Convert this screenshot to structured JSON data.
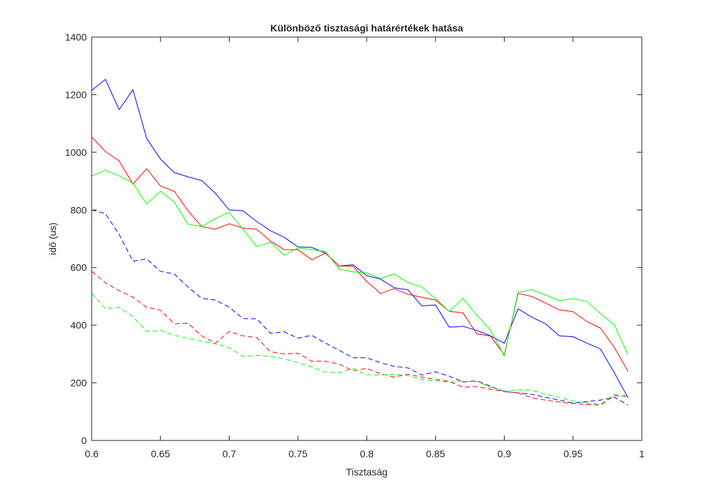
{
  "chart_data": {
    "type": "line",
    "title": "Különböző tisztasági határértékek hatása",
    "xlabel": "Tisztaság",
    "ylabel": "idő (us)",
    "xlim": [
      0.6,
      1.0
    ],
    "ylim": [
      0,
      1400
    ],
    "xticks": [
      0.6,
      0.65,
      0.7,
      0.75,
      0.8,
      0.85,
      0.9,
      0.95,
      1.0
    ],
    "xtick_labels": [
      "0.6",
      "0.65",
      "0.7",
      "0.75",
      "0.8",
      "0.85",
      "0.9",
      "0.95",
      "1"
    ],
    "yticks": [
      0,
      200,
      400,
      600,
      800,
      1000,
      1200,
      1400
    ],
    "ytick_labels": [
      "0",
      "200",
      "400",
      "600",
      "800",
      "1000",
      "1200",
      "1400"
    ],
    "grid": false,
    "legend": "none",
    "x": [
      0.6,
      0.61,
      0.62,
      0.63,
      0.64,
      0.65,
      0.66,
      0.67,
      0.68,
      0.69,
      0.7,
      0.71,
      0.72,
      0.73,
      0.74,
      0.75,
      0.76,
      0.77,
      0.78,
      0.79,
      0.8,
      0.81,
      0.82,
      0.83,
      0.84,
      0.85,
      0.86,
      0.87,
      0.88,
      0.89,
      0.9,
      0.91,
      0.92,
      0.93,
      0.94,
      0.95,
      0.96,
      0.97,
      0.98,
      0.99
    ],
    "series": [
      {
        "color": "#0000ff",
        "style": "solid",
        "values": [
          1215,
          1253,
          1148,
          1217,
          1048,
          977,
          930,
          915,
          902,
          858,
          800,
          797,
          760,
          728,
          705,
          672,
          670,
          650,
          605,
          610,
          572,
          560,
          530,
          523,
          467,
          470,
          393,
          396,
          382,
          363,
          337,
          457,
          428,
          405,
          363,
          360,
          338,
          317,
          235,
          148
        ]
      },
      {
        "color": "#ff0000",
        "style": "solid",
        "values": [
          1053,
          1003,
          970,
          890,
          943,
          883,
          865,
          798,
          742,
          733,
          752,
          737,
          733,
          692,
          662,
          662,
          627,
          650,
          605,
          605,
          552,
          510,
          527,
          507,
          497,
          487,
          448,
          443,
          370,
          362,
          297,
          510,
          500,
          477,
          453,
          447,
          413,
          390,
          323,
          240
        ]
      },
      {
        "color": "#00ff00",
        "style": "solid",
        "values": [
          918,
          938,
          918,
          893,
          820,
          865,
          828,
          750,
          743,
          770,
          792,
          733,
          673,
          688,
          643,
          668,
          662,
          655,
          595,
          585,
          582,
          562,
          578,
          548,
          533,
          492,
          448,
          493,
          435,
          383,
          293,
          515,
          523,
          505,
          485,
          492,
          483,
          440,
          402,
          297
        ]
      },
      {
        "color": "#0000ff",
        "style": "dashed",
        "values": [
          800,
          787,
          715,
          622,
          630,
          587,
          578,
          533,
          493,
          487,
          463,
          423,
          422,
          372,
          377,
          355,
          365,
          338,
          313,
          287,
          287,
          270,
          257,
          252,
          227,
          238,
          223,
          203,
          207,
          188,
          170,
          165,
          160,
          150,
          140,
          130,
          135,
          140,
          150,
          123
        ]
      },
      {
        "color": "#ff0000",
        "style": "dashed",
        "values": [
          587,
          547,
          520,
          497,
          462,
          452,
          405,
          407,
          363,
          338,
          378,
          363,
          357,
          308,
          300,
          303,
          275,
          275,
          265,
          242,
          250,
          232,
          220,
          230,
          220,
          212,
          205,
          185,
          187,
          178,
          170,
          165,
          148,
          140,
          133,
          128,
          125,
          123,
          155,
          155
        ]
      },
      {
        "color": "#00ff00",
        "style": "dashed",
        "values": [
          510,
          457,
          462,
          430,
          378,
          382,
          365,
          355,
          345,
          335,
          322,
          292,
          295,
          292,
          283,
          270,
          255,
          237,
          235,
          250,
          228,
          227,
          230,
          225,
          212,
          207,
          203,
          205,
          205,
          185,
          172,
          175,
          175,
          160,
          150,
          137,
          130,
          125,
          160,
          150
        ]
      }
    ]
  }
}
